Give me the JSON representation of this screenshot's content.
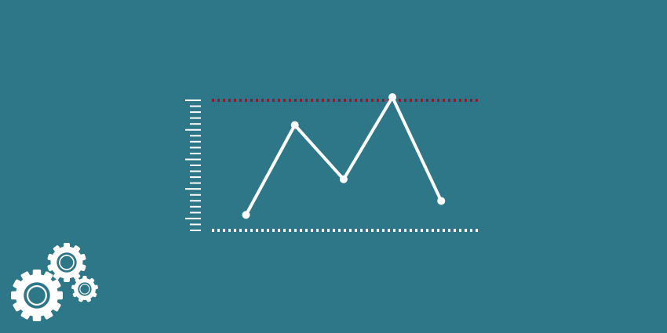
{
  "colors": {
    "background": "#2e7789",
    "line": "#ffffff",
    "threshold_line": "#8e1b2f",
    "baseline": "#ffffff",
    "gears": "#ffffff"
  },
  "icons": [
    "ruler-ticks-icon",
    "gear-icon"
  ],
  "chart_data": {
    "type": "line",
    "title": "",
    "xlabel": "",
    "ylabel": "",
    "grid": false,
    "legend": "none",
    "x": [
      1,
      2,
      3,
      4,
      5
    ],
    "values": [
      1,
      6.8,
      3.3,
      8.6,
      1.9
    ],
    "ylim": [
      0,
      8.4
    ],
    "xlim": [
      0.3,
      5.8
    ],
    "threshold": 8.4,
    "baseline": 0
  }
}
